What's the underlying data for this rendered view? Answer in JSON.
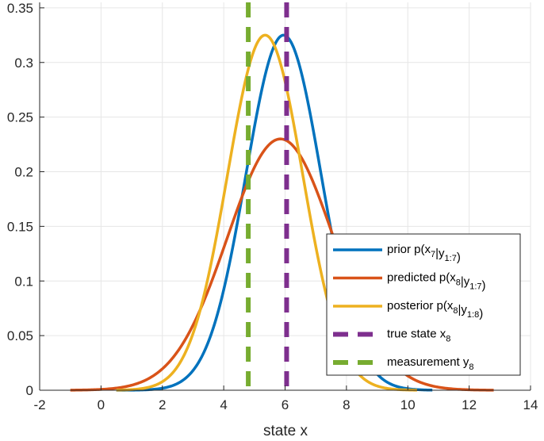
{
  "chart_data": {
    "type": "line",
    "xlabel": "state x",
    "ylabel": "",
    "xlim": [
      -2,
      14
    ],
    "ylim": [
      0,
      0.355
    ],
    "xticks": [
      -2,
      0,
      2,
      4,
      6,
      8,
      10,
      12,
      14
    ],
    "yticks": [
      0,
      0.05,
      0.1,
      0.15,
      0.2,
      0.25,
      0.3,
      0.35
    ],
    "grid": true,
    "legend_position": "bottom-right",
    "series": [
      {
        "name": "prior p(x_7|y_1:7)",
        "legend_main": "prior p(x",
        "legend_sub": "7",
        "legend_mid": "|y",
        "legend_sub2": "1:7",
        "legend_end": ")",
        "color": "#0072BD",
        "style": "solid",
        "mean": 5.95,
        "peak": 0.325,
        "xrange": [
          0.5,
          10.8
        ]
      },
      {
        "name": "predicted p(x_8|y_1:7)",
        "legend_main": "predicted p(x",
        "legend_sub": "8",
        "legend_mid": "|y",
        "legend_sub2": "1:7",
        "legend_end": ")",
        "color": "#D95319",
        "style": "solid",
        "mean": 5.85,
        "peak": 0.23,
        "xrange": [
          -1.0,
          12.8
        ]
      },
      {
        "name": "posterior p(x_8|y_1:8)",
        "legend_main": "posterior p(x",
        "legend_sub": "8",
        "legend_mid": "|y",
        "legend_sub2": "1:8",
        "legend_end": ")",
        "color": "#EDB120",
        "style": "solid",
        "mean": 5.35,
        "peak": 0.325,
        "xrange": [
          0.5,
          10.3
        ]
      },
      {
        "name": "true state x_8",
        "legend_main": "true state x",
        "legend_sub": "8",
        "legend_mid": "",
        "legend_sub2": "",
        "legend_end": "",
        "color": "#7E2F8E",
        "style": "dashed",
        "x": 6.05
      },
      {
        "name": "measurement y_8",
        "legend_main": "measurement y",
        "legend_sub": "8",
        "legend_mid": "",
        "legend_sub2": "",
        "legend_end": "",
        "color": "#77AC30",
        "style": "dashed",
        "x": 4.8
      }
    ]
  }
}
